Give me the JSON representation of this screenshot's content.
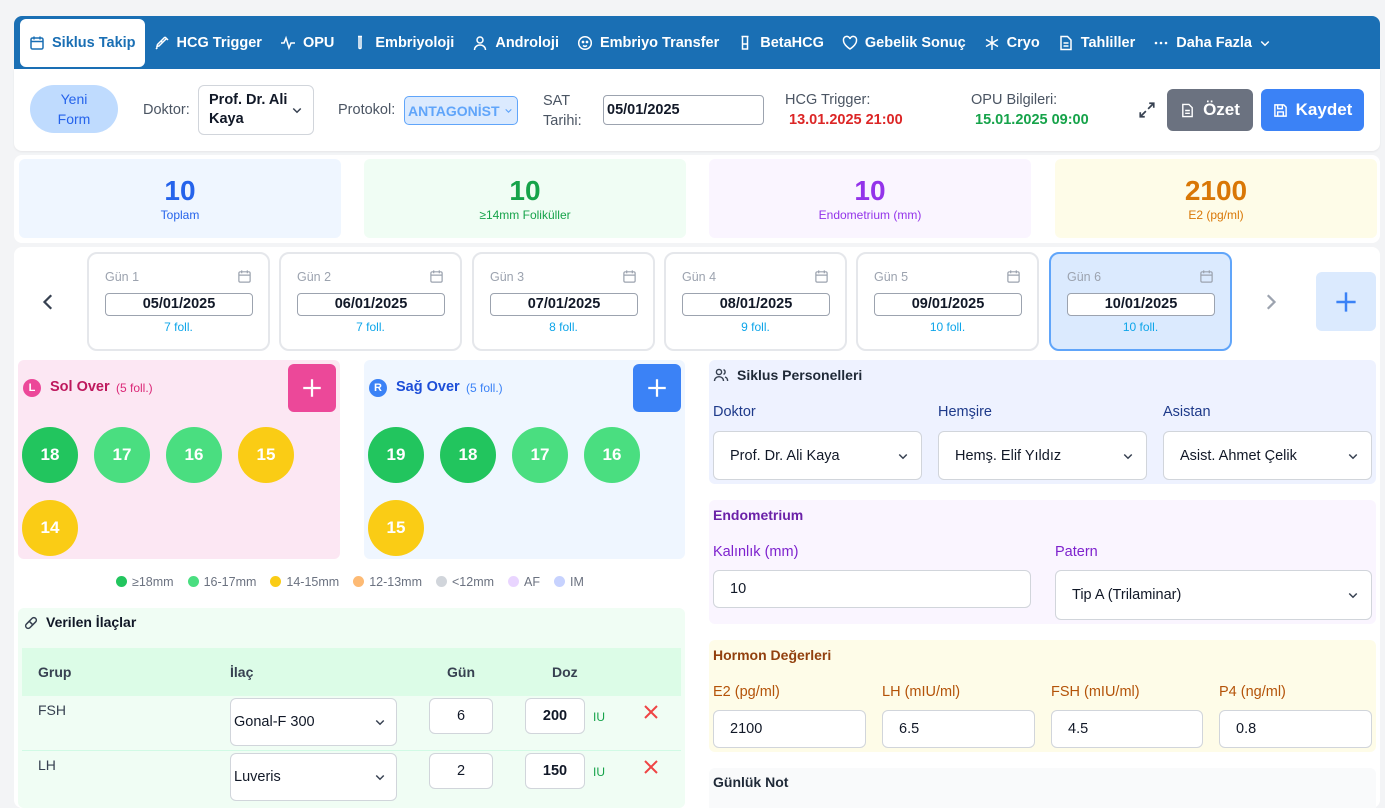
{
  "tabs": [
    {
      "label": "Siklus Takip",
      "icon": "calendar-icon",
      "active": true
    },
    {
      "label": "HCG Trigger",
      "icon": "syringe-icon"
    },
    {
      "label": "OPU",
      "icon": "activity-icon"
    },
    {
      "label": "Embriyoloji",
      "icon": "test-tube-icon"
    },
    {
      "label": "Androloji",
      "icon": "user-icon"
    },
    {
      "label": "Embriyo Transfer",
      "icon": "baby-icon"
    },
    {
      "label": "BetaHCG",
      "icon": "flask-icon"
    },
    {
      "label": "Gebelik Sonuç",
      "icon": "heart-icon"
    },
    {
      "label": "Cryo",
      "icon": "snowflake-icon"
    },
    {
      "label": "Tahliller",
      "icon": "file-icon"
    },
    {
      "label": "Daha Fazla",
      "icon": "more-icon"
    }
  ],
  "header": {
    "new_form": "Yeni Form",
    "doctor_label": "Doktor:",
    "doctor_value": "Prof. Dr. Ali Kaya",
    "protocol_label": "Protokol:",
    "protocol_value": "ANTAGONİST",
    "sat_label": "SAT Tarihi:",
    "sat_value": "05/01/2025",
    "hcg_label": "HCG Trigger:",
    "hcg_value": "13.01.2025 21:00",
    "opu_label": "OPU Bilgileri:",
    "opu_value": "15.01.2025 09:00",
    "summary_button": "Özet",
    "save_button": "Kaydet"
  },
  "stats": [
    {
      "value": "10",
      "caption": "Toplam",
      "color": "#2563eb",
      "bg": "#eff6ff"
    },
    {
      "value": "10",
      "caption": "≥14mm Foliküller",
      "color": "#16a34a",
      "bg": "#f0fdf4"
    },
    {
      "value": "10",
      "caption": "Endometrium (mm)",
      "color": "#9333ea",
      "bg": "#faf5ff"
    },
    {
      "value": "2100",
      "caption": "E2 (pg/ml)",
      "color": "#d97706",
      "bg": "#fefce8"
    }
  ],
  "days": [
    {
      "label": "Gün 1",
      "date": "05/01/2025",
      "foll": "7 foll."
    },
    {
      "label": "Gün 2",
      "date": "06/01/2025",
      "foll": "7 foll."
    },
    {
      "label": "Gün 3",
      "date": "07/01/2025",
      "foll": "8 foll."
    },
    {
      "label": "Gün 4",
      "date": "08/01/2025",
      "foll": "9 foll."
    },
    {
      "label": "Gün 5",
      "date": "09/01/2025",
      "foll": "10 foll."
    },
    {
      "label": "Gün 6",
      "date": "10/01/2025",
      "foll": "10 foll.",
      "selected": true
    }
  ],
  "left_ovary": {
    "badge": "L",
    "title": "Sol Over",
    "count": "(5 foll.)",
    "follicles": [
      "18",
      "17",
      "16",
      "15",
      "14"
    ]
  },
  "right_ovary": {
    "badge": "R",
    "title": "Sağ Over",
    "count": "(5 foll.)",
    "follicles": [
      "19",
      "18",
      "17",
      "16",
      "15"
    ]
  },
  "legend": [
    {
      "label": "≥18mm",
      "color": "#22c55e"
    },
    {
      "label": "16-17mm",
      "color": "#4ade80"
    },
    {
      "label": "14-15mm",
      "color": "#facc15"
    },
    {
      "label": "12-13mm",
      "color": "#fdba74"
    },
    {
      "label": "<12mm",
      "color": "#d1d5db"
    },
    {
      "label": "AF",
      "color": "#e9d5ff"
    },
    {
      "label": "IM",
      "color": "#c7d2fe"
    }
  ],
  "medications": {
    "title": "Verilen İlaçlar",
    "headers": [
      "Grup",
      "İlaç",
      "Gün",
      "Doz"
    ],
    "rows": [
      {
        "group": "FSH",
        "drug": "Gonal-F 300",
        "day": "6",
        "dose": "200",
        "unit": "IU"
      },
      {
        "group": "LH",
        "drug": "Luveris",
        "day": "2",
        "dose": "150",
        "unit": "IU"
      }
    ]
  },
  "personnel": {
    "title": "Siklus Personelleri",
    "doctor_label": "Doktor",
    "doctor_value": "Prof. Dr. Ali Kaya",
    "nurse_label": "Hemşire",
    "nurse_value": "Hemş. Elif Yıldız",
    "assistant_label": "Asistan",
    "assistant_value": "Asist. Ahmet Çelik"
  },
  "endometrium": {
    "title": "Endometrium",
    "thickness_label": "Kalınlık (mm)",
    "thickness_value": "10",
    "pattern_label": "Patern",
    "pattern_value": "Tip A (Trilaminar)"
  },
  "hormones": {
    "title": "Hormon Değerleri",
    "e2_label": "E2 (pg/ml)",
    "e2_value": "2100",
    "lh_label": "LH (mIU/ml)",
    "lh_value": "6.5",
    "fsh_label": "FSH (mIU/ml)",
    "fsh_value": "4.5",
    "p4_label": "P4 (ng/ml)",
    "p4_value": "0.8"
  },
  "daily_note": {
    "title": "Günlük Not"
  }
}
